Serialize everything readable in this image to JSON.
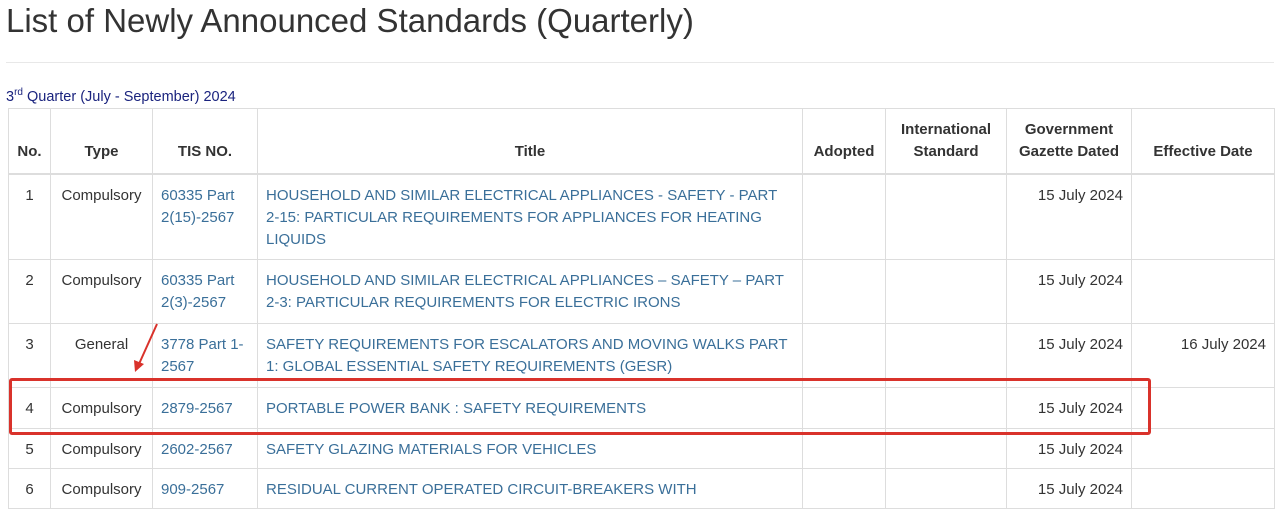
{
  "page_title": "List of Newly Announced Standards (Quarterly)",
  "quarter": {
    "ordinal": "3",
    "suffix": "rd",
    "text": " Quarter (July - September) 2024"
  },
  "headers": [
    "No.",
    "Type",
    "TIS NO.",
    "Title",
    "Adopted",
    "International Standard",
    "Government Gazette Dated",
    "Effective Date"
  ],
  "rows": [
    {
      "no": "1",
      "type": "Compulsory",
      "tis": "60335 Part 2(15)-2567",
      "title": "HOUSEHOLD AND SIMILAR ELECTRICAL APPLIANCES - SAFETY - PART 2-15: PARTICULAR REQUIREMENTS FOR APPLIANCES FOR HEATING LIQUIDS",
      "adopted": "",
      "intl": "",
      "gazette": "15 July 2024",
      "effective": ""
    },
    {
      "no": "2",
      "type": "Compulsory",
      "tis": "60335 Part 2(3)-2567",
      "title": "HOUSEHOLD AND SIMILAR ELECTRICAL APPLIANCES – SAFETY – PART 2-3: PARTICULAR REQUIREMENTS FOR ELECTRIC IRONS",
      "adopted": "",
      "intl": "",
      "gazette": "15 July 2024",
      "effective": ""
    },
    {
      "no": "3",
      "type": "General",
      "tis": "3778 Part 1-2567",
      "title": "SAFETY REQUIREMENTS FOR ESCALATORS AND MOVING WALKS PART 1: GLOBAL ESSENTIAL SAFETY REQUIREMENTS (GESR)",
      "adopted": "",
      "intl": "",
      "gazette": "15 July 2024",
      "effective": "16 July 2024"
    },
    {
      "no": "4",
      "type": "Compulsory",
      "tis": "2879-2567",
      "title": "PORTABLE POWER BANK : SAFETY REQUIREMENTS",
      "adopted": "",
      "intl": "",
      "gazette": "15 July 2024",
      "effective": ""
    },
    {
      "no": "5",
      "type": "Compulsory",
      "tis": "2602-2567",
      "title": "SAFETY GLAZING MATERIALS FOR VEHICLES",
      "adopted": "",
      "intl": "",
      "gazette": "15 July 2024",
      "effective": ""
    },
    {
      "no": "6",
      "type": "Compulsory",
      "tis": "909-2567",
      "title": "RESIDUAL CURRENT OPERATED CIRCUIT-BREAKERS WITH",
      "adopted": "",
      "intl": "",
      "gazette": "15 July 2024",
      "effective": ""
    }
  ],
  "highlight_color": "#d9322b"
}
